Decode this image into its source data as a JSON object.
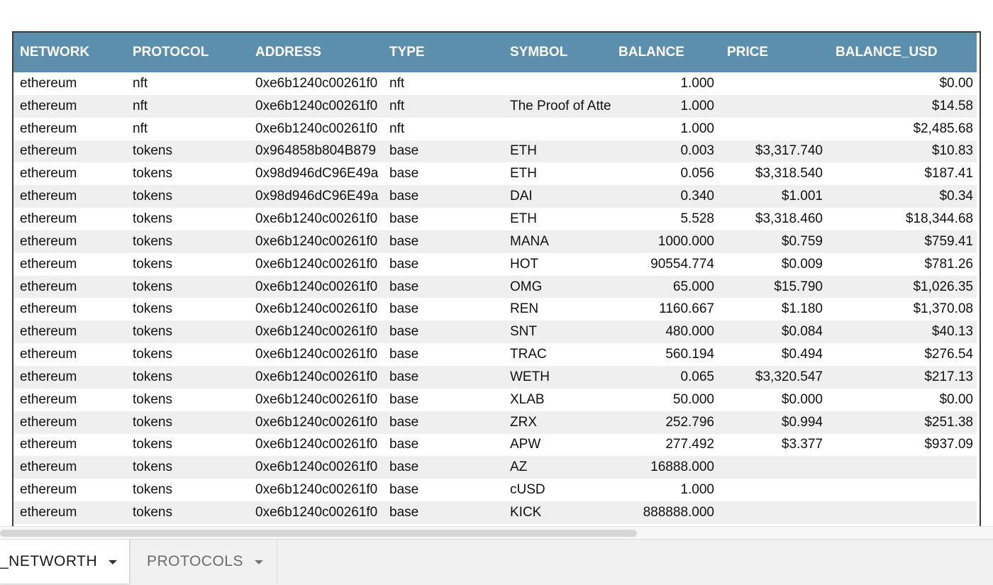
{
  "table": {
    "columns": [
      "NETWORK",
      "PROTOCOL",
      "ADDRESS",
      "TYPE",
      "SYMBOL",
      "BALANCE",
      "PRICE",
      "BALANCE_USD"
    ],
    "rows": [
      {
        "network": "ethereum",
        "protocol": "nft",
        "address": "0xe6b1240c00261f0",
        "type": "nft",
        "symbol": "",
        "balance": "1.000",
        "price": "",
        "balance_usd": "$0.00"
      },
      {
        "network": "ethereum",
        "protocol": "nft",
        "address": "0xe6b1240c00261f0",
        "type": "nft",
        "symbol": "The Proof of Atte",
        "balance": "1.000",
        "price": "",
        "balance_usd": "$14.58"
      },
      {
        "network": "ethereum",
        "protocol": "nft",
        "address": "0xe6b1240c00261f0",
        "type": "nft",
        "symbol": "",
        "balance": "1.000",
        "price": "",
        "balance_usd": "$2,485.68"
      },
      {
        "network": "ethereum",
        "protocol": "tokens",
        "address": "0x964858b804B879",
        "type": "base",
        "symbol": "ETH",
        "balance": "0.003",
        "price": "$3,317.740",
        "balance_usd": "$10.83"
      },
      {
        "network": "ethereum",
        "protocol": "tokens",
        "address": "0x98d946dC96E49a",
        "type": "base",
        "symbol": "ETH",
        "balance": "0.056",
        "price": "$3,318.540",
        "balance_usd": "$187.41"
      },
      {
        "network": "ethereum",
        "protocol": "tokens",
        "address": "0x98d946dC96E49a",
        "type": "base",
        "symbol": "DAI",
        "balance": "0.340",
        "price": "$1.001",
        "balance_usd": "$0.34"
      },
      {
        "network": "ethereum",
        "protocol": "tokens",
        "address": "0xe6b1240c00261f0",
        "type": "base",
        "symbol": "ETH",
        "balance": "5.528",
        "price": "$3,318.460",
        "balance_usd": "$18,344.68"
      },
      {
        "network": "ethereum",
        "protocol": "tokens",
        "address": "0xe6b1240c00261f0",
        "type": "base",
        "symbol": "MANA",
        "balance": "1000.000",
        "price": "$0.759",
        "balance_usd": "$759.41"
      },
      {
        "network": "ethereum",
        "protocol": "tokens",
        "address": "0xe6b1240c00261f0",
        "type": "base",
        "symbol": "HOT",
        "balance": "90554.774",
        "price": "$0.009",
        "balance_usd": "$781.26"
      },
      {
        "network": "ethereum",
        "protocol": "tokens",
        "address": "0xe6b1240c00261f0",
        "type": "base",
        "symbol": "OMG",
        "balance": "65.000",
        "price": "$15.790",
        "balance_usd": "$1,026.35"
      },
      {
        "network": "ethereum",
        "protocol": "tokens",
        "address": "0xe6b1240c00261f0",
        "type": "base",
        "symbol": "REN",
        "balance": "1160.667",
        "price": "$1.180",
        "balance_usd": "$1,370.08"
      },
      {
        "network": "ethereum",
        "protocol": "tokens",
        "address": "0xe6b1240c00261f0",
        "type": "base",
        "symbol": "SNT",
        "balance": "480.000",
        "price": "$0.084",
        "balance_usd": "$40.13"
      },
      {
        "network": "ethereum",
        "protocol": "tokens",
        "address": "0xe6b1240c00261f0",
        "type": "base",
        "symbol": "TRAC",
        "balance": "560.194",
        "price": "$0.494",
        "balance_usd": "$276.54"
      },
      {
        "network": "ethereum",
        "protocol": "tokens",
        "address": "0xe6b1240c00261f0",
        "type": "base",
        "symbol": "WETH",
        "balance": "0.065",
        "price": "$3,320.547",
        "balance_usd": "$217.13"
      },
      {
        "network": "ethereum",
        "protocol": "tokens",
        "address": "0xe6b1240c00261f0",
        "type": "base",
        "symbol": "XLAB",
        "balance": "50.000",
        "price": "$0.000",
        "balance_usd": "$0.00"
      },
      {
        "network": "ethereum",
        "protocol": "tokens",
        "address": "0xe6b1240c00261f0",
        "type": "base",
        "symbol": "ZRX",
        "balance": "252.796",
        "price": "$0.994",
        "balance_usd": "$251.38"
      },
      {
        "network": "ethereum",
        "protocol": "tokens",
        "address": "0xe6b1240c00261f0",
        "type": "base",
        "symbol": "APW",
        "balance": "277.492",
        "price": "$3.377",
        "balance_usd": "$937.09"
      },
      {
        "network": "ethereum",
        "protocol": "tokens",
        "address": "0xe6b1240c00261f0",
        "type": "base",
        "symbol": "AZ",
        "balance": "16888.000",
        "price": "",
        "balance_usd": ""
      },
      {
        "network": "ethereum",
        "protocol": "tokens",
        "address": "0xe6b1240c00261f0",
        "type": "base",
        "symbol": "cUSD",
        "balance": "1.000",
        "price": "",
        "balance_usd": ""
      },
      {
        "network": "ethereum",
        "protocol": "tokens",
        "address": "0xe6b1240c00261f0",
        "type": "base",
        "symbol": "KICK",
        "balance": "888888.000",
        "price": "",
        "balance_usd": ""
      }
    ]
  },
  "tabs": [
    {
      "label": "_NETWORTH",
      "active": true
    },
    {
      "label": "PROTOCOLS",
      "active": false
    }
  ],
  "colors": {
    "header_bg": "#5b8fad",
    "header_text": "#ffffff",
    "row_alt": "#efefef"
  },
  "icons": {
    "tab_menu": "caret-down-icon"
  }
}
